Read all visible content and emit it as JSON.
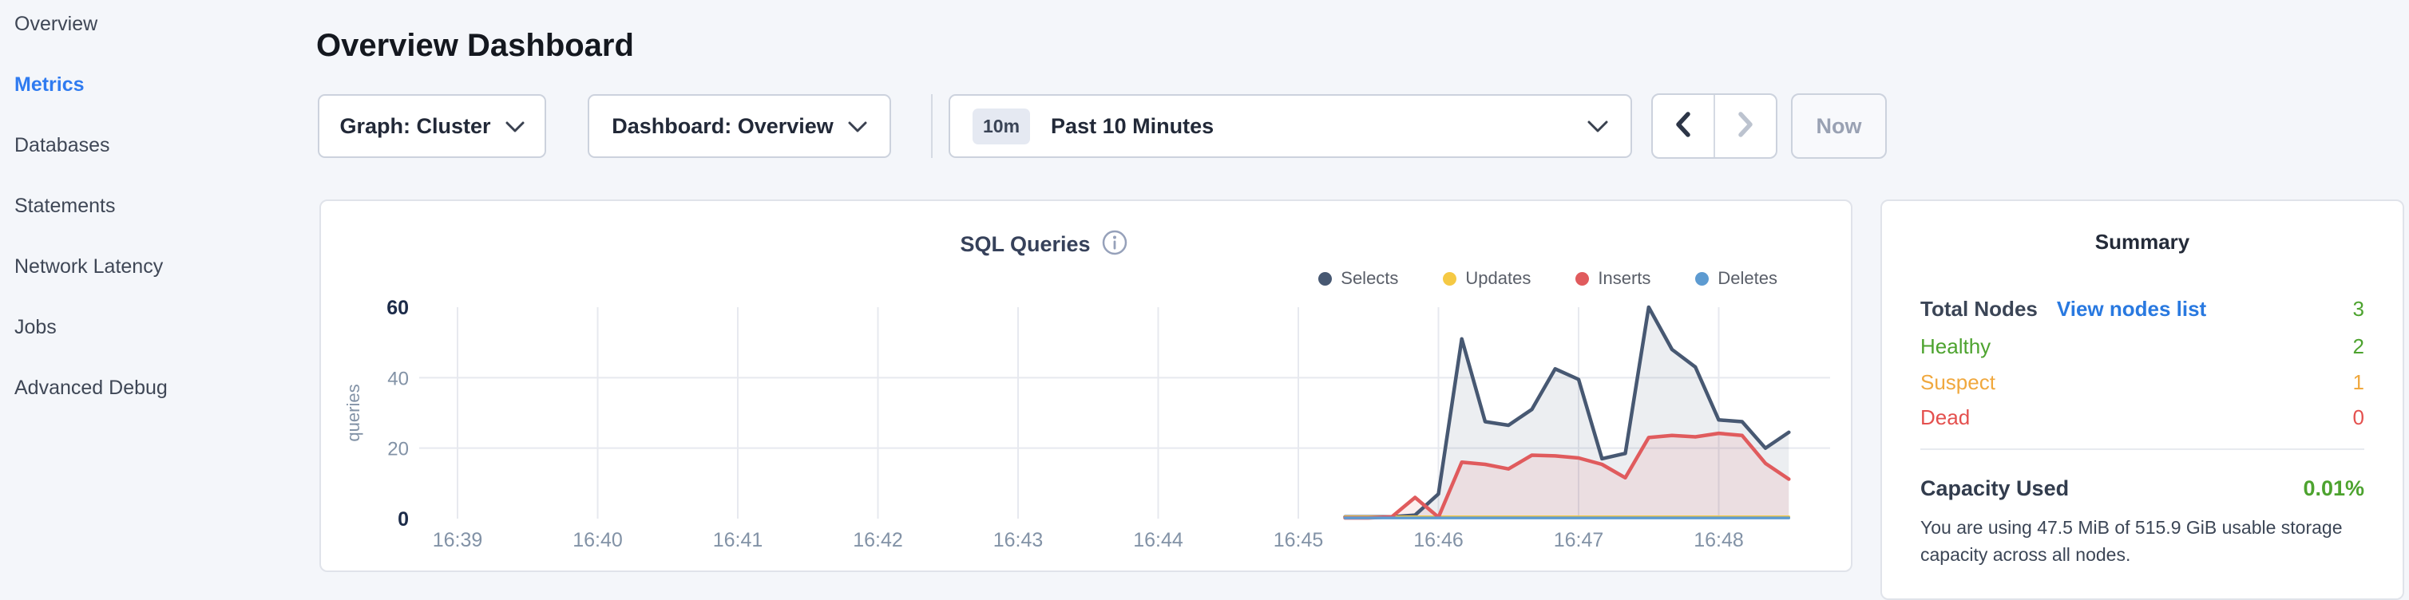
{
  "sidebar": {
    "items": [
      {
        "label": "Overview",
        "active": false
      },
      {
        "label": "Metrics",
        "active": true
      },
      {
        "label": "Databases",
        "active": false
      },
      {
        "label": "Statements",
        "active": false
      },
      {
        "label": "Network Latency",
        "active": false
      },
      {
        "label": "Jobs",
        "active": false
      },
      {
        "label": "Advanced Debug",
        "active": false
      }
    ]
  },
  "header": {
    "title": "Overview Dashboard"
  },
  "toolbar": {
    "graph_dropdown_label": "Graph: Cluster",
    "dashboard_dropdown_label": "Dashboard: Overview",
    "time_badge": "10m",
    "time_label": "Past 10 Minutes",
    "now_label": "Now"
  },
  "chart_card": {
    "title": "SQL Queries"
  },
  "chart_data": {
    "type": "area",
    "title": "SQL Queries",
    "xlabel": "",
    "ylabel": "queries",
    "x_ticks": [
      "16:39",
      "16:40",
      "16:41",
      "16:42",
      "16:43",
      "16:44",
      "16:45",
      "16:46",
      "16:47",
      "16:48"
    ],
    "y_ticks": [
      0,
      20,
      40,
      60
    ],
    "ylim": [
      0,
      60
    ],
    "grid": true,
    "legend_position": "top-right",
    "series_start_min": 6.3333,
    "series_step_min": 0.16667,
    "series": [
      {
        "name": "Selects",
        "color": "#475872",
        "fill": "rgba(71,88,114,0.10)",
        "values": [
          0.5,
          0.5,
          0.5,
          1,
          7,
          51,
          27.5,
          26.5,
          31,
          42.5,
          39.5,
          17,
          18.5,
          60,
          48,
          43,
          28,
          27.5,
          20,
          24.5
        ]
      },
      {
        "name": "Updates",
        "color": "#f5c944",
        "fill": "none",
        "values": [
          0.5,
          0.5,
          0.5,
          0.5,
          0.5,
          0.5,
          0.5,
          0.5,
          0.5,
          0.5,
          0.5,
          0.5,
          0.5,
          0.5,
          0.5,
          0.5,
          0.5,
          0.5,
          0.5,
          0.5
        ]
      },
      {
        "name": "Inserts",
        "color": "#e05b5d",
        "fill": "rgba(224,91,93,0.10)",
        "values": [
          0.2,
          0.2,
          0.5,
          6,
          0.4,
          16,
          15.4,
          14.1,
          18,
          17.8,
          17.2,
          15.4,
          11.6,
          23,
          23.6,
          23.2,
          24.2,
          23.6,
          15.7,
          11.2
        ]
      },
      {
        "name": "Deletes",
        "color": "#5d9bd1",
        "fill": "none",
        "values": [
          0.2,
          0.2,
          0.2,
          0.2,
          0.2,
          0.2,
          0.2,
          0.2,
          0.2,
          0.2,
          0.2,
          0.2,
          0.2,
          0.2,
          0.2,
          0.2,
          0.2,
          0.2,
          0.2,
          0.2
        ]
      }
    ]
  },
  "summary": {
    "title": "Summary",
    "node_rows": [
      {
        "label": "Total Nodes",
        "link": "View nodes list",
        "value": "3",
        "label_color": "#3b4556",
        "value_color": "#4da32f",
        "bold": true
      },
      {
        "label": "Healthy",
        "value": "2",
        "label_color": "#4da32f",
        "value_color": "#4da32f",
        "bold": false
      },
      {
        "label": "Suspect",
        "value": "1",
        "label_color": "#f0a83e",
        "value_color": "#f0a83e",
        "bold": false
      },
      {
        "label": "Dead",
        "value": "0",
        "label_color": "#e4504e",
        "value_color": "#e4504e",
        "bold": false
      }
    ],
    "capacity_label": "Capacity Used",
    "capacity_value": "0.01%",
    "capacity_value_color": "#4da32f",
    "capacity_description": "You are using 47.5 MiB of 515.9 GiB usable storage capacity across all nodes."
  },
  "colors": {
    "active_nav_blue": "#2f7bf0",
    "link_blue": "#2979e0",
    "healthy_green": "#4da32f",
    "suspect_orange": "#f0a83e",
    "dead_red": "#e4504e"
  }
}
